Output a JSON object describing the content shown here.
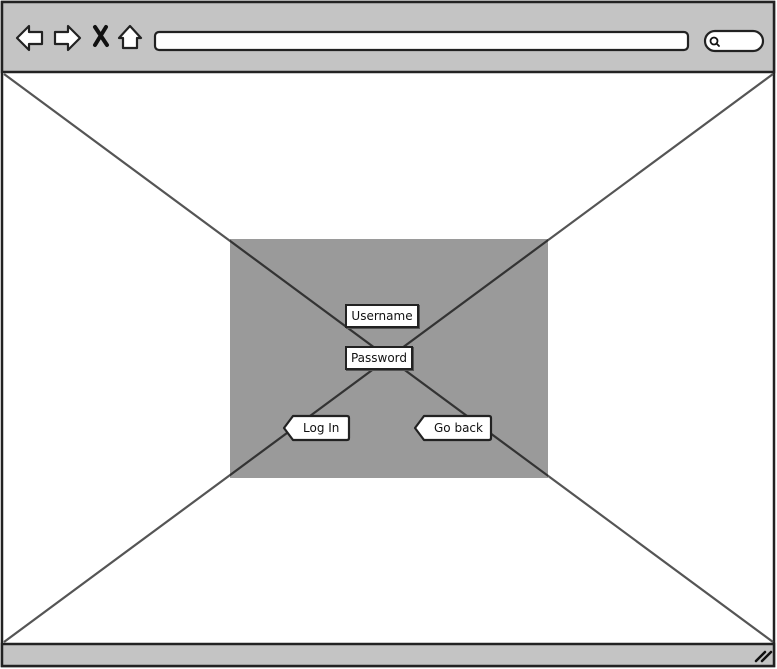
{
  "form": {
    "username_placeholder": "Username",
    "password_placeholder": "Password",
    "login_label": "Log In",
    "goback_label": "Go back"
  },
  "colors": {
    "chrome": "#c4c4c4",
    "panel": "#9a9a9a",
    "stroke": "#222222",
    "crossline": "#555555",
    "content": "#ffffff"
  },
  "icons": {
    "back": "arrow-left-icon",
    "forward": "arrow-right-icon",
    "close": "close-icon",
    "home": "home-icon",
    "search": "search-icon",
    "resize": "resize-grip-icon"
  }
}
